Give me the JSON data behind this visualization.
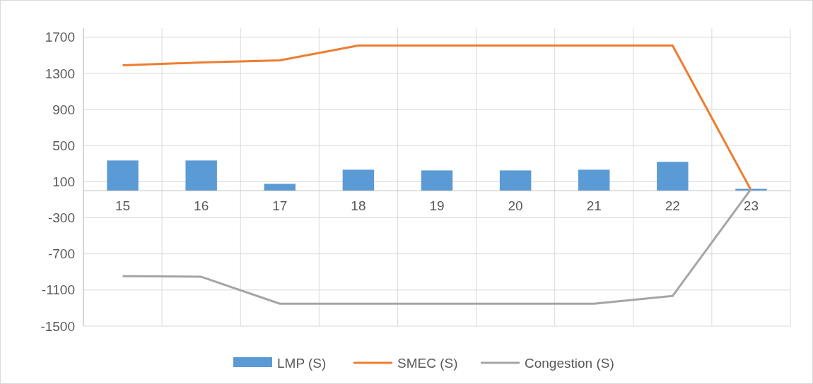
{
  "chart_data": {
    "type": "bar",
    "categories": [
      "15",
      "16",
      "17",
      "18",
      "19",
      "20",
      "21",
      "22",
      "23"
    ],
    "series": [
      {
        "name": "LMP (S)",
        "color": "#5b9bd5",
        "values": [
          335,
          335,
          76,
          233,
          225,
          225,
          233,
          320,
          21
        ]
      },
      {
        "name": "SMEC (S)",
        "type": "line",
        "color": "#ed7d31",
        "values": [
          1389,
          1420,
          1444,
          1609,
          1609,
          1609,
          1609,
          1609,
          5
        ]
      },
      {
        "name": "Congestion (S)",
        "type": "line",
        "color": "#a5a5a5",
        "values": [
          -946,
          -953,
          -1252,
          -1252,
          -1252,
          -1252,
          -1252,
          -1166,
          20
        ]
      }
    ],
    "ylim": [
      -1500,
      1800
    ],
    "yticks": [
      -1500,
      -1100,
      -700,
      -300,
      100,
      500,
      900,
      1300,
      1700
    ],
    "grid": true,
    "legend": "bottom",
    "marker": "none",
    "line_style": "solid"
  }
}
